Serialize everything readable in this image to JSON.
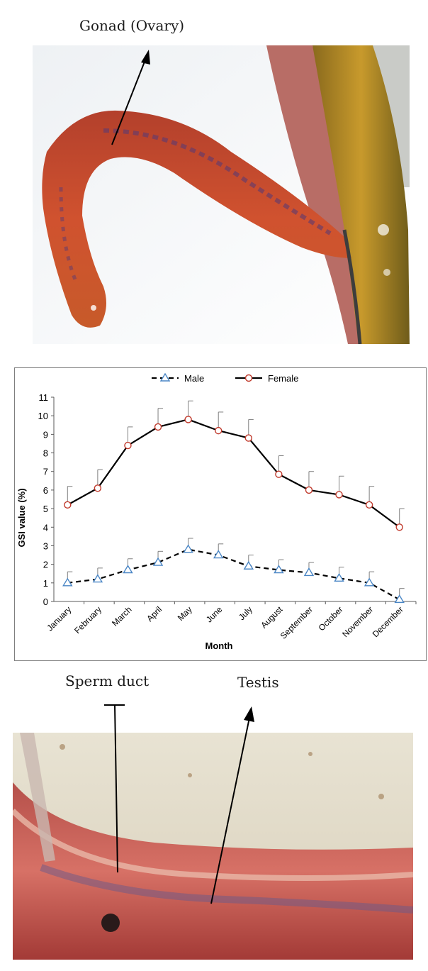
{
  "top_figure": {
    "caption": "Gonad (Ovary)"
  },
  "bottom_figure": {
    "label_left": "Sperm duct",
    "label_right": "Testis"
  },
  "chart_data": {
    "type": "line",
    "title": "",
    "xlabel": "Month",
    "ylabel": "GSI value (%)",
    "categories": [
      "January",
      "February",
      "March",
      "April",
      "May",
      "June",
      "July",
      "August",
      "September",
      "October",
      "November",
      "December"
    ],
    "ylim": [
      0,
      11
    ],
    "yticks": [
      0,
      1,
      2,
      3,
      4,
      5,
      6,
      7,
      8,
      9,
      10,
      11
    ],
    "legend_position": "top-center",
    "grid": false,
    "series": [
      {
        "name": "Male",
        "line_style": "dashed",
        "marker": "triangle",
        "marker_color": "#4a86c5",
        "values": [
          1.0,
          1.2,
          1.7,
          2.1,
          2.8,
          2.5,
          1.9,
          1.7,
          1.55,
          1.25,
          1.0,
          0.1
        ],
        "error_plus": [
          0.6,
          0.6,
          0.6,
          0.6,
          0.6,
          0.6,
          0.6,
          0.55,
          0.55,
          0.6,
          0.6,
          0.6
        ]
      },
      {
        "name": "Female",
        "line_style": "solid",
        "marker": "circle",
        "marker_color": "#c0392b",
        "values": [
          5.2,
          6.1,
          8.4,
          9.4,
          9.8,
          9.2,
          8.8,
          6.85,
          6.0,
          5.75,
          5.2,
          4.0
        ],
        "error_plus": [
          1.0,
          1.0,
          1.0,
          1.0,
          1.0,
          1.0,
          1.0,
          1.0,
          1.0,
          1.0,
          1.0,
          1.0
        ]
      }
    ]
  }
}
